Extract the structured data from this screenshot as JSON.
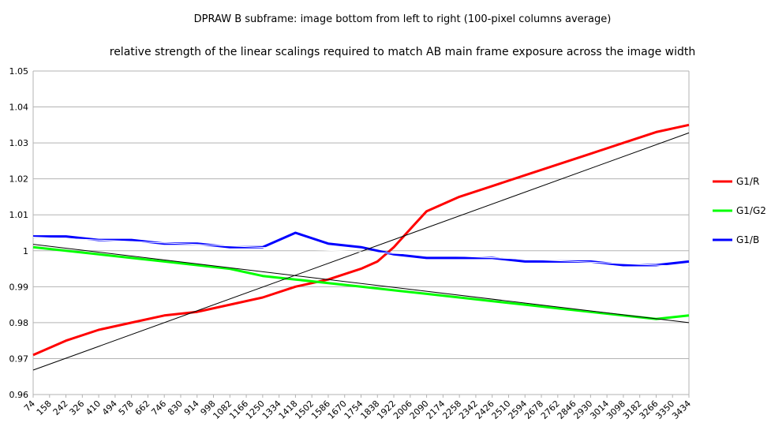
{
  "chart_data": {
    "type": "line",
    "title": "DPRAW B subframe: image bottom from left to right (100-pixel columns average)",
    "subtitle": "relative strength of the linear scalings required to match AB main frame exposure across the image width",
    "xlabel": "",
    "ylabel": "",
    "ylim": [
      0.96,
      1.05
    ],
    "yticks": [
      "0.96",
      "0.97",
      "0.98",
      "0.99",
      "1",
      "1.01",
      "1.02",
      "1.03",
      "1.04",
      "1.05"
    ],
    "xlim": [
      74,
      3434
    ],
    "xticks": [
      "74",
      "158",
      "242",
      "326",
      "410",
      "494",
      "578",
      "662",
      "746",
      "830",
      "914",
      "998",
      "1082",
      "1166",
      "1250",
      "1334",
      "1418",
      "1502",
      "1586",
      "1670",
      "1754",
      "1838",
      "1922",
      "2006",
      "2090",
      "2174",
      "2258",
      "2342",
      "2426",
      "2510",
      "2594",
      "2678",
      "2762",
      "2846",
      "2930",
      "3014",
      "3098",
      "3182",
      "3266",
      "3350",
      "3434"
    ],
    "grid": "horizontal",
    "legend_position": "right",
    "series": [
      {
        "name": "G1/R",
        "color": "#ff0000",
        "x": [
          74,
          242,
          410,
          578,
          746,
          914,
          1082,
          1250,
          1418,
          1586,
          1754,
          1838,
          1922,
          2006,
          2090,
          2258,
          2426,
          2594,
          2762,
          2930,
          3098,
          3266,
          3434
        ],
        "y": [
          0.971,
          0.975,
          0.978,
          0.98,
          0.982,
          0.983,
          0.985,
          0.987,
          0.99,
          0.992,
          0.995,
          0.997,
          1.001,
          1.006,
          1.011,
          1.015,
          1.018,
          1.021,
          1.024,
          1.027,
          1.03,
          1.033,
          1.035
        ]
      },
      {
        "name": "G1/G2",
        "color": "#00ff00",
        "x": [
          74,
          242,
          410,
          578,
          746,
          914,
          1082,
          1250,
          1418,
          1586,
          1754,
          1922,
          2090,
          2258,
          2426,
          2594,
          2762,
          2930,
          3098,
          3266,
          3434
        ],
        "y": [
          1.001,
          1.0,
          0.999,
          0.998,
          0.997,
          0.996,
          0.995,
          0.993,
          0.992,
          0.991,
          0.99,
          0.989,
          0.988,
          0.987,
          0.986,
          0.985,
          0.984,
          0.983,
          0.982,
          0.981,
          0.982
        ]
      },
      {
        "name": "G1/B",
        "color": "#0000ff",
        "x": [
          74,
          242,
          410,
          578,
          746,
          914,
          1082,
          1250,
          1418,
          1586,
          1754,
          1922,
          2090,
          2258,
          2426,
          2594,
          2762,
          2930,
          3098,
          3266,
          3434
        ],
        "y": [
          1.004,
          1.004,
          1.003,
          1.003,
          1.002,
          1.002,
          1.001,
          1.001,
          1.005,
          1.002,
          1.001,
          0.999,
          0.998,
          0.998,
          0.998,
          0.997,
          0.997,
          0.997,
          0.996,
          0.996,
          0.997
        ]
      }
    ],
    "trendlines": [
      {
        "series": "G1/R",
        "color": "#000000",
        "x": [
          74,
          3434
        ],
        "y": [
          0.9668,
          1.0328
        ]
      },
      {
        "series": "G1/G2",
        "color": "#000000",
        "x": [
          74,
          3434
        ],
        "y": [
          1.0018,
          0.98
        ]
      },
      {
        "series": "G1/B",
        "color": "#ffffff",
        "x": [
          74,
          3434
        ],
        "y": [
          1.0038,
          0.9956
        ]
      }
    ]
  }
}
